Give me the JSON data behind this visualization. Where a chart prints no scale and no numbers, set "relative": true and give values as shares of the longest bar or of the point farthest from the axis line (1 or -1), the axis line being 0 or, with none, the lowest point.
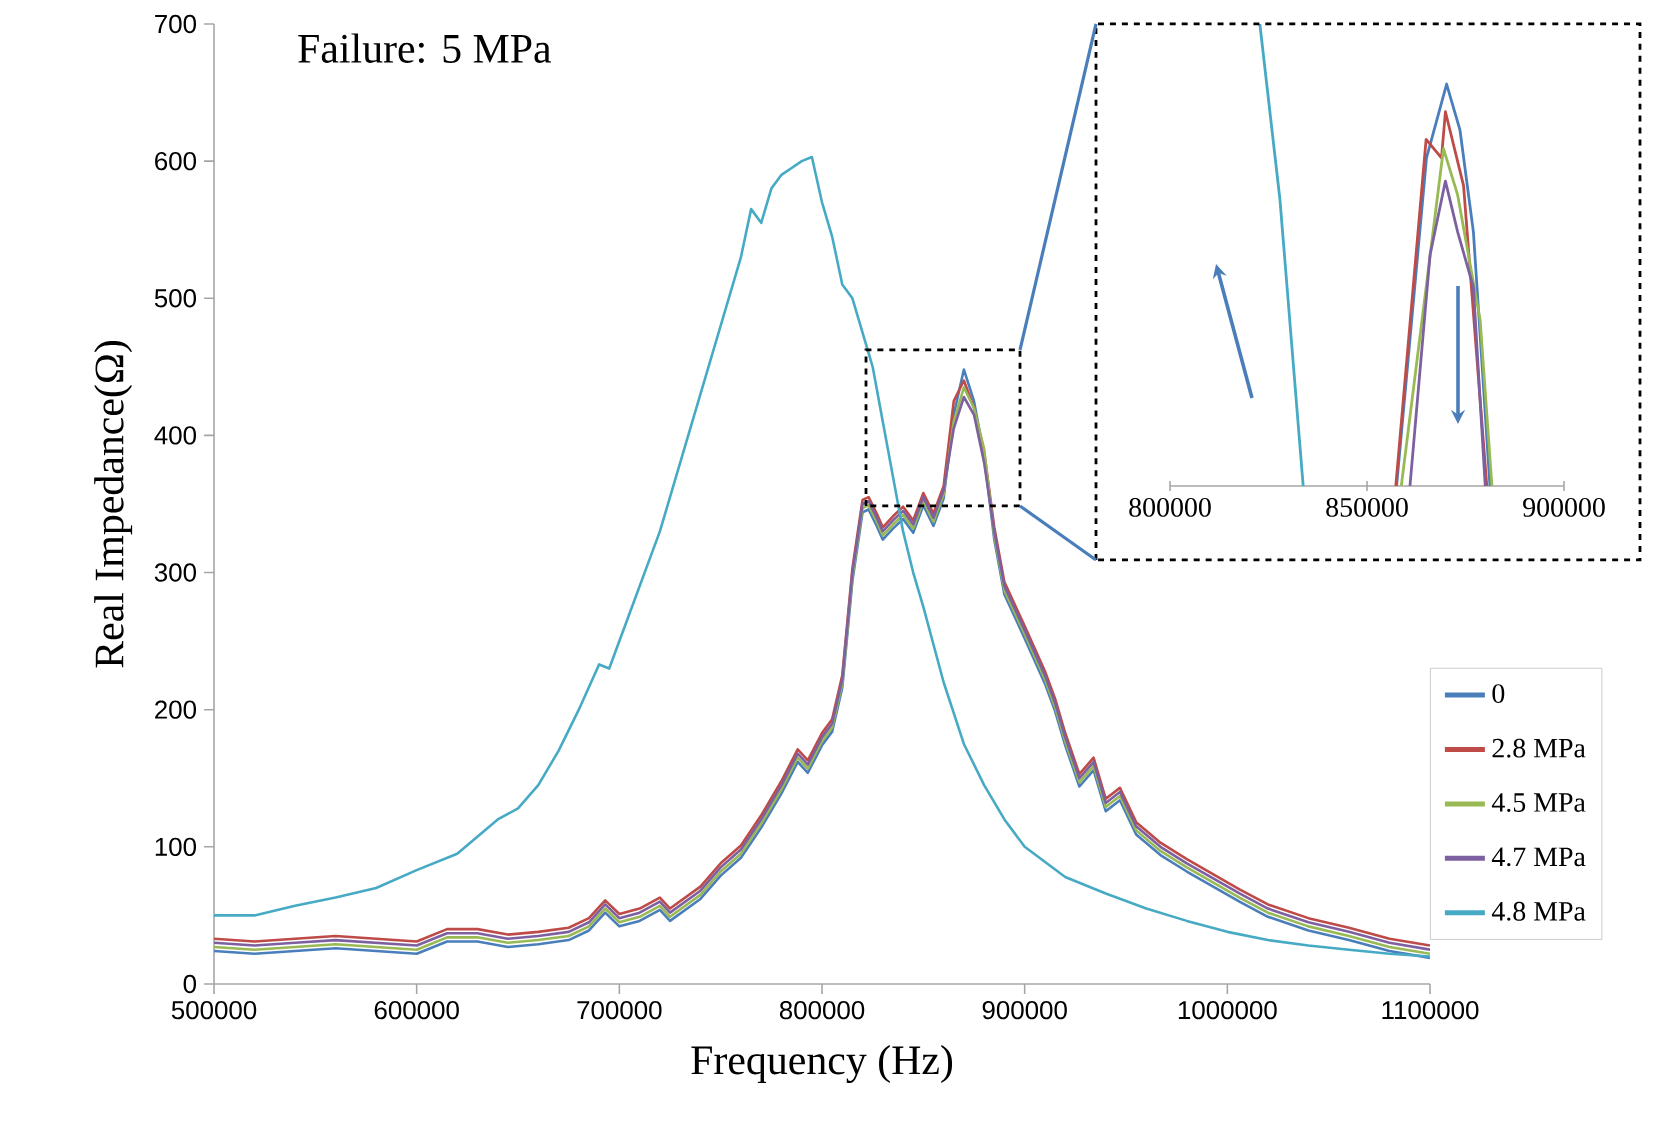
{
  "chart_data": [
    {
      "type": "line",
      "title": "Failure: 5 MPa",
      "xlabel": "Frequency (Hz)",
      "ylabel": "Real Impedance(Ω)",
      "xlim": [
        500000,
        1100000
      ],
      "xticks": [
        500000,
        600000,
        700000,
        800000,
        900000,
        1000000,
        1100000
      ],
      "ylim": [
        0,
        700
      ],
      "yticks": [
        0,
        100,
        200,
        300,
        400,
        500,
        600,
        700
      ],
      "legend": "right",
      "line_style": "solid",
      "series": [
        {
          "name": "0",
          "color": "#4a7ebb",
          "x": [
            500000,
            520000,
            540000,
            560000,
            580000,
            600000,
            615000,
            630000,
            645000,
            660000,
            675000,
            685000,
            693000,
            700000,
            710000,
            720000,
            725000,
            740000,
            750000,
            760000,
            770000,
            780000,
            788000,
            793000,
            800000,
            805000,
            810000,
            815000,
            820000,
            823000,
            827000,
            830000,
            835000,
            840000,
            845000,
            850000,
            855000,
            860000,
            865000,
            870000,
            875000,
            880000,
            885000,
            890000,
            900000,
            910000,
            915000,
            920000,
            927000,
            934000,
            940000,
            947000,
            955000,
            967000,
            980000,
            1006000,
            1020000,
            1040000,
            1060000,
            1080000,
            1100000
          ],
          "values": [
            24,
            22,
            24,
            26,
            24,
            22,
            31,
            31,
            27,
            29,
            32,
            39,
            52,
            42,
            46,
            54,
            46,
            62,
            79,
            92,
            114,
            139,
            162,
            154,
            174,
            184,
            216,
            294,
            344,
            346,
            334,
            324,
            332,
            339,
            329,
            349,
            334,
            354,
            415,
            448,
            425,
            385,
            324,
            284,
            252,
            219,
            199,
            174,
            144,
            156,
            126,
            134,
            109,
            94,
            82,
            60,
            49,
            39,
            32,
            24,
            19
          ]
        },
        {
          "name": "2.8 MPa",
          "color": "#be4b48",
          "x": [
            500000,
            520000,
            540000,
            560000,
            580000,
            600000,
            615000,
            630000,
            645000,
            660000,
            675000,
            685000,
            693000,
            700000,
            710000,
            720000,
            725000,
            740000,
            750000,
            760000,
            770000,
            780000,
            788000,
            793000,
            800000,
            805000,
            810000,
            815000,
            820000,
            823000,
            827000,
            830000,
            835000,
            840000,
            845000,
            850000,
            855000,
            860000,
            865000,
            870000,
            875000,
            880000,
            885000,
            890000,
            900000,
            910000,
            915000,
            920000,
            927000,
            934000,
            940000,
            947000,
            955000,
            967000,
            980000,
            1006000,
            1020000,
            1040000,
            1060000,
            1080000,
            1100000
          ],
          "values": [
            33,
            31,
            33,
            35,
            33,
            31,
            40,
            40,
            36,
            38,
            41,
            48,
            61,
            51,
            55,
            63,
            55,
            71,
            88,
            101,
            123,
            148,
            171,
            163,
            183,
            193,
            225,
            303,
            353,
            355,
            343,
            333,
            341,
            348,
            338,
            358,
            343,
            363,
            425,
            440,
            420,
            388,
            333,
            293,
            261,
            228,
            208,
            183,
            153,
            165,
            135,
            143,
            118,
            103,
            91,
            69,
            58,
            48,
            41,
            33,
            28
          ]
        },
        {
          "name": "4.5 MPa",
          "color": "#98b954",
          "x": [
            500000,
            520000,
            540000,
            560000,
            580000,
            600000,
            615000,
            630000,
            645000,
            660000,
            675000,
            685000,
            693000,
            700000,
            710000,
            720000,
            725000,
            740000,
            750000,
            760000,
            770000,
            780000,
            788000,
            793000,
            800000,
            805000,
            810000,
            815000,
            820000,
            823000,
            827000,
            830000,
            835000,
            840000,
            845000,
            850000,
            855000,
            860000,
            865000,
            870000,
            875000,
            880000,
            885000,
            890000,
            900000,
            910000,
            915000,
            920000,
            927000,
            934000,
            940000,
            947000,
            955000,
            967000,
            980000,
            1006000,
            1020000,
            1040000,
            1060000,
            1080000,
            1100000
          ],
          "values": [
            27,
            25,
            27,
            29,
            27,
            25,
            34,
            34,
            30,
            32,
            35,
            42,
            55,
            45,
            49,
            57,
            49,
            65,
            82,
            95,
            117,
            142,
            165,
            157,
            177,
            187,
            219,
            297,
            347,
            349,
            337,
            327,
            335,
            342,
            332,
            352,
            337,
            357,
            410,
            435,
            420,
            390,
            327,
            287,
            255,
            222,
            202,
            177,
            147,
            159,
            129,
            137,
            112,
            97,
            85,
            63,
            52,
            42,
            35,
            27,
            22
          ]
        },
        {
          "name": "4.7 MPa",
          "color": "#7d60a0",
          "x": [
            500000,
            520000,
            540000,
            560000,
            580000,
            600000,
            615000,
            630000,
            645000,
            660000,
            675000,
            685000,
            693000,
            700000,
            710000,
            720000,
            725000,
            740000,
            750000,
            760000,
            770000,
            780000,
            788000,
            793000,
            800000,
            805000,
            810000,
            815000,
            820000,
            823000,
            827000,
            830000,
            835000,
            840000,
            845000,
            850000,
            855000,
            860000,
            865000,
            870000,
            875000,
            880000,
            885000,
            890000,
            900000,
            910000,
            915000,
            920000,
            927000,
            934000,
            940000,
            947000,
            955000,
            967000,
            980000,
            1006000,
            1020000,
            1040000,
            1060000,
            1080000,
            1100000
          ],
          "values": [
            30,
            28,
            30,
            32,
            30,
            28,
            37,
            37,
            33,
            35,
            38,
            45,
            58,
            48,
            52,
            60,
            52,
            68,
            85,
            98,
            120,
            145,
            168,
            160,
            180,
            190,
            222,
            300,
            350,
            352,
            340,
            330,
            338,
            345,
            335,
            355,
            340,
            360,
            405,
            428,
            415,
            380,
            330,
            290,
            258,
            225,
            205,
            180,
            150,
            162,
            132,
            140,
            115,
            100,
            88,
            66,
            55,
            45,
            38,
            30,
            25
          ]
        },
        {
          "name": "4.8 MPa",
          "color": "#46aac5",
          "x": [
            500000,
            520000,
            540000,
            560000,
            580000,
            600000,
            620000,
            640000,
            650000,
            660000,
            670000,
            680000,
            690000,
            695000,
            700000,
            710000,
            720000,
            730000,
            740000,
            750000,
            760000,
            765000,
            770000,
            775000,
            780000,
            785000,
            790000,
            795000,
            800000,
            805000,
            810000,
            815000,
            820000,
            825000,
            830000,
            835000,
            840000,
            845000,
            850000,
            860000,
            870000,
            880000,
            890000,
            900000,
            920000,
            940000,
            960000,
            980000,
            1000000,
            1020000,
            1040000,
            1060000,
            1080000,
            1100000
          ],
          "values": [
            50,
            50,
            57,
            63,
            70,
            83,
            95,
            120,
            128,
            145,
            170,
            200,
            233,
            230,
            250,
            290,
            330,
            380,
            430,
            480,
            530,
            565,
            555,
            580,
            590,
            595,
            600,
            603,
            570,
            545,
            510,
            500,
            475,
            450,
            410,
            370,
            330,
            300,
            275,
            220,
            175,
            145,
            120,
            100,
            78,
            66,
            55,
            46,
            38,
            32,
            28,
            25,
            22,
            20
          ]
        }
      ]
    },
    {
      "type": "line",
      "relative": true,
      "xlim": [
        800000,
        900000
      ],
      "xticks": [
        800000,
        850000,
        900000
      ],
      "tick_labels": "x",
      "line_style": "solid",
      "series": [
        {
          "color": "#4a7ebb",
          "x": [
            857500,
            865100,
            870200,
            873600,
            877000,
            881200
          ],
          "values": [
            0,
            0.71,
            0.87,
            0.77,
            0.55,
            0
          ]
        },
        {
          "color": "#be4b48",
          "x": [
            857300,
            865000,
            868900,
            869900,
            874500,
            880400
          ],
          "values": [
            0,
            0.75,
            0.71,
            0.81,
            0.65,
            0
          ]
        },
        {
          "color": "#98b954",
          "x": [
            858700,
            869400,
            873000,
            878700,
            881700
          ],
          "values": [
            0,
            0.73,
            0.63,
            0.36,
            0
          ]
        },
        {
          "color": "#7d60a0",
          "x": [
            860900,
            866000,
            869900,
            873000,
            877000,
            880000
          ],
          "values": [
            0,
            0.5,
            0.66,
            0.55,
            0.43,
            0
          ]
        },
        {
          "color": "#46aac5",
          "x": [
            822800,
            827900,
            833800
          ],
          "values": [
            1,
            0.62,
            0
          ]
        }
      ]
    }
  ]
}
